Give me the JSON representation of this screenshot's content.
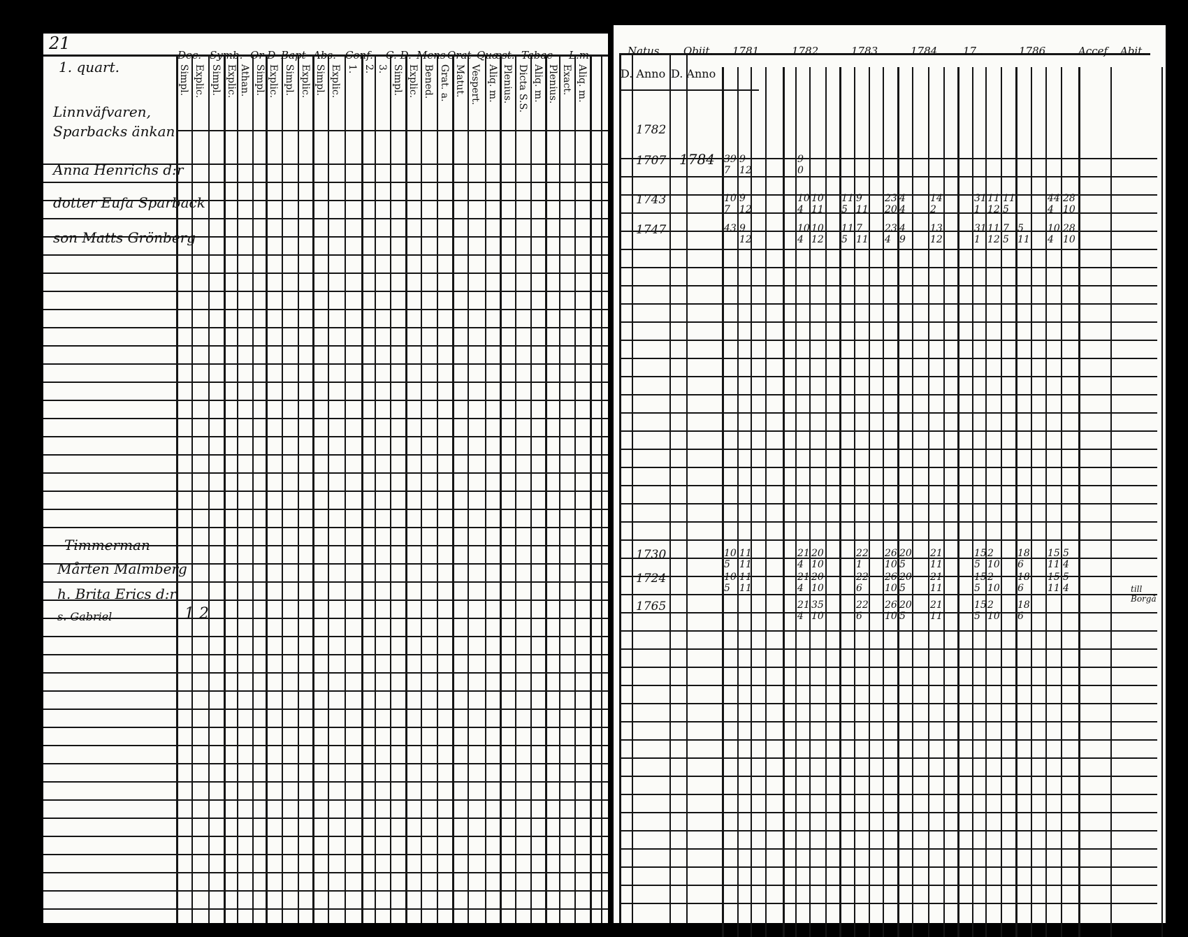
{
  "left_page": {
    "page_number": "21",
    "section": "1. quart.",
    "group_headers": [
      "Dec.",
      "Symb.",
      "Or D",
      "Bapt",
      "Abs.",
      "Conf.",
      "C. D.",
      "Mens",
      "Orat",
      "Quæst.",
      "Tabac",
      "L.m."
    ],
    "sub_headers": [
      "Simpl.",
      "Explic.",
      "Simpl.",
      "Explic.",
      "Athan.",
      "Simpl.",
      "Explic.",
      "Simpl.",
      "Explic.",
      "Simpl.",
      "Explic.",
      "1.",
      "2.",
      "3.",
      "Simpl.",
      "Explic.",
      "Bened.",
      "Grat. a.",
      "Matut.",
      "Vespert.",
      "Aliq. m.",
      "Plenius.",
      "Dicta S.S.",
      "Aliq. m.",
      "Plenius.",
      "Exact.",
      "Aliq. m."
    ],
    "household_1": {
      "title": [
        "Linnväfvaren,",
        "Sparbacks änkan"
      ],
      "members": [
        "Anna Henrichs d:r",
        "dotter Eufa Sparback",
        "son Matts Grönberg"
      ]
    },
    "household_2": {
      "title": "Timmerman",
      "members": [
        "Mårten Malmberg",
        "h. Brita Erics d:r",
        "s. Gabriel"
      ],
      "mark": "1 2"
    }
  },
  "right_page": {
    "headers": [
      "Natus.",
      "Obiit.",
      "1781",
      "1782",
      "1783",
      "1784",
      "17..",
      "1786",
      "Accef.",
      "Abit."
    ],
    "sub_headers": [
      "D. Anno",
      "D. Anno"
    ],
    "rows": [
      {
        "natus": "1782",
        "obiit": "",
        "top": [],
        "bottom": []
      },
      {
        "natus": "1707",
        "obiit": "1784",
        "top": [
          [
            0,
            "39"
          ],
          [
            1,
            "9"
          ],
          [
            3,
            "9"
          ]
        ],
        "bottom": [
          [
            0,
            "7"
          ],
          [
            1,
            "12"
          ],
          [
            3,
            "0"
          ]
        ]
      },
      {
        "natus": "1743",
        "obiit": "",
        "top": [
          [
            0,
            "10"
          ],
          [
            1,
            "9"
          ],
          [
            3,
            "10"
          ],
          [
            4,
            "10"
          ],
          [
            5,
            "11"
          ],
          [
            6,
            "9"
          ],
          [
            7,
            "23"
          ],
          [
            8,
            "4"
          ],
          [
            9,
            "14"
          ],
          [
            10,
            "31"
          ],
          [
            11,
            "11"
          ],
          [
            12,
            "11"
          ],
          [
            14,
            "44"
          ],
          [
            15,
            "28"
          ]
        ],
        "bottom": [
          [
            0,
            "7"
          ],
          [
            1,
            "12"
          ],
          [
            3,
            "4"
          ],
          [
            4,
            "11"
          ],
          [
            5,
            "5"
          ],
          [
            6,
            "11"
          ],
          [
            7,
            "20"
          ],
          [
            8,
            "4"
          ],
          [
            9,
            "2"
          ],
          [
            10,
            "1"
          ],
          [
            11,
            "12"
          ],
          [
            12,
            "5"
          ],
          [
            14,
            "4"
          ],
          [
            15,
            "10"
          ]
        ]
      },
      {
        "natus": "1747",
        "obiit": "",
        "top": [
          [
            0,
            "43"
          ],
          [
            1,
            "9"
          ],
          [
            3,
            "10"
          ],
          [
            4,
            "10"
          ],
          [
            5,
            "11"
          ],
          [
            6,
            "7"
          ],
          [
            7,
            "23"
          ],
          [
            8,
            "4"
          ],
          [
            9,
            "13"
          ],
          [
            10,
            "31"
          ],
          [
            11,
            "11"
          ],
          [
            12,
            "7"
          ],
          [
            13,
            "5"
          ],
          [
            14,
            "10"
          ],
          [
            15,
            "28"
          ]
        ],
        "bottom": [
          [
            1,
            "12"
          ],
          [
            3,
            "4"
          ],
          [
            4,
            "12"
          ],
          [
            5,
            "5"
          ],
          [
            6,
            "11"
          ],
          [
            7,
            "4"
          ],
          [
            8,
            "9"
          ],
          [
            9,
            "12"
          ],
          [
            10,
            "1"
          ],
          [
            11,
            "12"
          ],
          [
            12,
            "5"
          ],
          [
            13,
            "11"
          ],
          [
            14,
            "4"
          ],
          [
            15,
            "10"
          ]
        ]
      },
      {
        "natus": "1730",
        "obiit": "",
        "top": [
          [
            0,
            "10"
          ],
          [
            1,
            "11"
          ],
          [
            3,
            "21"
          ],
          [
            4,
            "20"
          ],
          [
            6,
            "22"
          ],
          [
            7,
            "26"
          ],
          [
            8,
            "20"
          ],
          [
            9,
            "21"
          ],
          [
            10,
            "15"
          ],
          [
            11,
            "2"
          ],
          [
            13,
            "18"
          ],
          [
            14,
            "15"
          ],
          [
            15,
            "5"
          ]
        ],
        "bottom": [
          [
            0,
            "5"
          ],
          [
            1,
            "11"
          ],
          [
            3,
            "4"
          ],
          [
            4,
            "10"
          ],
          [
            6,
            "1"
          ],
          [
            7,
            "10"
          ],
          [
            8,
            "5"
          ],
          [
            9,
            "11"
          ],
          [
            10,
            "5"
          ],
          [
            11,
            "10"
          ],
          [
            13,
            "6"
          ],
          [
            14,
            "11"
          ],
          [
            15,
            "4"
          ]
        ]
      },
      {
        "natus": "1724",
        "obiit": "",
        "top": [
          [
            0,
            "10"
          ],
          [
            1,
            "11"
          ],
          [
            3,
            "21"
          ],
          [
            4,
            "20"
          ],
          [
            6,
            "22"
          ],
          [
            7,
            "26"
          ],
          [
            8,
            "20"
          ],
          [
            9,
            "21"
          ],
          [
            10,
            "15"
          ],
          [
            11,
            "2"
          ],
          [
            13,
            "18"
          ],
          [
            14,
            "15"
          ],
          [
            15,
            "5"
          ]
        ],
        "bottom": [
          [
            0,
            "5"
          ],
          [
            1,
            "11"
          ],
          [
            3,
            "4"
          ],
          [
            4,
            "10"
          ],
          [
            6,
            "6"
          ],
          [
            7,
            "10"
          ],
          [
            8,
            "5"
          ],
          [
            9,
            "11"
          ],
          [
            10,
            "5"
          ],
          [
            11,
            "10"
          ],
          [
            13,
            "6"
          ],
          [
            14,
            "11"
          ],
          [
            15,
            "4"
          ]
        ]
      },
      {
        "natus": "1765",
        "obiit": "",
        "top": [
          [
            3,
            "21"
          ],
          [
            4,
            "35"
          ],
          [
            6,
            "22"
          ],
          [
            7,
            "26"
          ],
          [
            8,
            "20"
          ],
          [
            9,
            "21"
          ],
          [
            10,
            "15"
          ],
          [
            11,
            "2"
          ],
          [
            13,
            "18"
          ]
        ],
        "bottom": [
          [
            3,
            "4"
          ],
          [
            4,
            "10"
          ],
          [
            6,
            "6"
          ],
          [
            7,
            "10"
          ],
          [
            8,
            "5"
          ],
          [
            9,
            "11"
          ],
          [
            10,
            "5"
          ],
          [
            11,
            "10"
          ],
          [
            13,
            "6"
          ]
        ]
      }
    ],
    "margin_note": "till Borgå"
  }
}
